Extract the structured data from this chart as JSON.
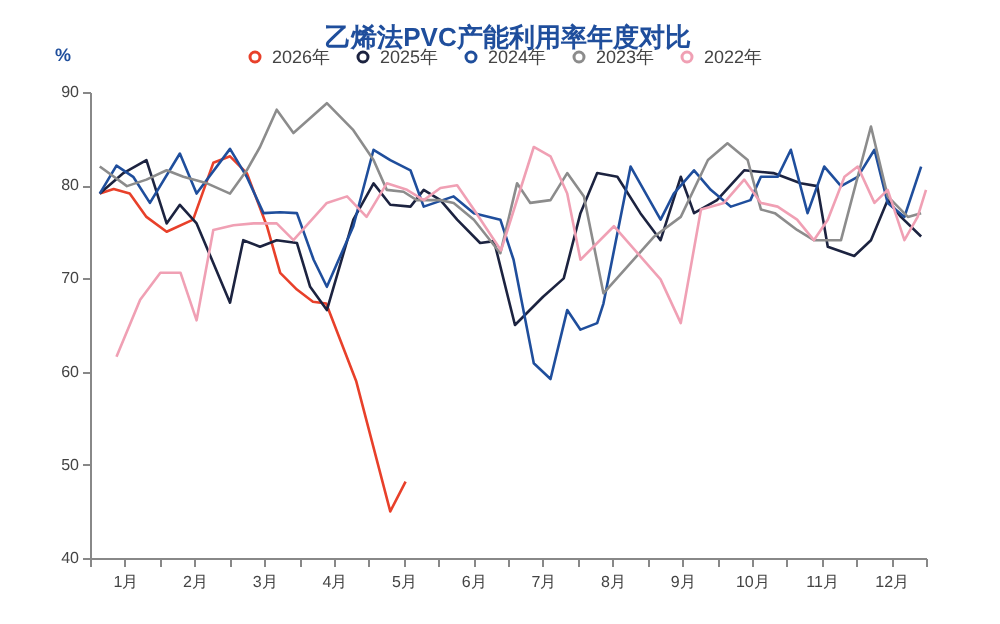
{
  "chart_data": {
    "type": "line",
    "title": "乙烯法PVC产能利用率年度对比",
    "ylabel": "%",
    "legend": "top",
    "grid": false,
    "xlim": [
      0,
      12
    ],
    "ylim": [
      40,
      90
    ],
    "yticks": [
      40,
      50,
      60,
      70,
      80,
      90
    ],
    "xticks": [
      {
        "value": 0,
        "label": null
      },
      {
        "value": 0.5,
        "label": "1月"
      },
      {
        "value": 1,
        "label": null
      },
      {
        "value": 1.5,
        "label": "2月"
      },
      {
        "value": 2,
        "label": null
      },
      {
        "value": 2.5,
        "label": "3月"
      },
      {
        "value": 3,
        "label": null
      },
      {
        "value": 3.5,
        "label": "4月"
      },
      {
        "value": 4,
        "label": null
      },
      {
        "value": 4.5,
        "label": "5月"
      },
      {
        "value": 5,
        "label": null
      },
      {
        "value": 5.5,
        "label": "6月"
      },
      {
        "value": 6,
        "label": null
      },
      {
        "value": 6.5,
        "label": "7月"
      },
      {
        "value": 7,
        "label": null
      },
      {
        "value": 7.5,
        "label": "8月"
      },
      {
        "value": 8,
        "label": null
      },
      {
        "value": 8.5,
        "label": "9月"
      },
      {
        "value": 9,
        "label": null
      },
      {
        "value": 9.5,
        "label": "10月"
      },
      {
        "value": 10,
        "label": null
      },
      {
        "value": 10.5,
        "label": "11月"
      },
      {
        "value": 11,
        "label": null
      },
      {
        "value": 11.5,
        "label": "12月"
      },
      {
        "value": 12,
        "label": null
      }
    ],
    "series": [
      {
        "name": "2026年",
        "color": "#e8402a",
        "x": [
          0.14,
          0.34,
          0.57,
          0.81,
          1.1,
          1.48,
          1.77,
          2.01,
          2.25,
          2.54,
          2.73,
          2.97,
          3.2,
          3.39,
          3.82,
          4.31,
          4.53
        ],
        "values": [
          79.1,
          79.6,
          79.1,
          76.6,
          75,
          76.3,
          82.4,
          83.1,
          81.3,
          75.6,
          70.6,
          68.8,
          67.5,
          67.3,
          59,
          45,
          48.2
        ]
      },
      {
        "name": "2025年",
        "color": "#1c2340",
        "x": [
          0.14,
          0.48,
          0.81,
          1.1,
          1.29,
          1.53,
          2.01,
          2.2,
          2.44,
          2.68,
          2.97,
          3.16,
          3.4,
          3.78,
          4.07,
          4.31,
          4.6,
          4.79,
          5.03,
          5.27,
          5.6,
          5.8,
          6.1,
          6.5,
          6.8,
          7.04,
          7.28,
          7.57,
          7.9,
          8.19,
          8.48,
          8.67,
          9.0,
          9.39,
          9.81,
          10.2,
          10.44,
          10.59,
          10.97,
          11.21,
          11.45,
          11.64,
          11.93
        ],
        "values": [
          79.1,
          81.3,
          82.7,
          75.9,
          77.9,
          75.9,
          67.4,
          74.1,
          73.4,
          74.1,
          73.8,
          69.1,
          66.6,
          76.3,
          80.2,
          77.9,
          77.7,
          79.5,
          78.4,
          76.3,
          73.8,
          74,
          65,
          68,
          70,
          77,
          81.3,
          80.9,
          77,
          74.1,
          80.9,
          77,
          78.4,
          81.6,
          81.3,
          80.2,
          79.9,
          73.4,
          72.4,
          74.1,
          78.4,
          76.6,
          74.5
        ]
      },
      {
        "name": "2024年",
        "color": "#1f4e9c",
        "x": [
          0.14,
          0.38,
          0.62,
          0.86,
          1.29,
          1.53,
          2.01,
          2.25,
          2.49,
          2.73,
          2.97,
          3.21,
          3.4,
          3.78,
          4.07,
          4.31,
          4.6,
          4.79,
          5.22,
          5.51,
          5.89,
          6.08,
          6.37,
          6.61,
          6.85,
          7.04,
          7.28,
          7.37,
          7.76,
          8.19,
          8.38,
          8.67,
          8.91,
          9.2,
          9.48,
          9.63,
          9.87,
          10.06,
          10.3,
          10.54,
          10.78,
          11.02,
          11.26,
          11.45,
          11.69,
          11.93
        ],
        "values": [
          79.1,
          82.1,
          80.9,
          78.1,
          83.4,
          79.1,
          83.9,
          80.9,
          77,
          77.1,
          77,
          72,
          69.1,
          75.6,
          83.8,
          82.7,
          81.6,
          77.7,
          78.8,
          77,
          76.3,
          72,
          60.9,
          59.2,
          66.6,
          64.5,
          65.2,
          67.3,
          82,
          76.3,
          79.1,
          81.6,
          79.5,
          77.7,
          78.4,
          80.9,
          80.9,
          83.8,
          77,
          82,
          79.9,
          80.9,
          83.8,
          78.1,
          76.6,
          82
        ]
      },
      {
        "name": "2023年",
        "color": "#8c8c8c",
        "x": [
          0.14,
          0.53,
          0.81,
          1.1,
          1.34,
          1.68,
          2.01,
          2.25,
          2.44,
          2.68,
          2.92,
          3.4,
          3.78,
          4.07,
          4.26,
          4.5,
          4.69,
          5.03,
          5.22,
          5.51,
          5.89,
          6.13,
          6.32,
          6.61,
          6.85,
          7.09,
          7.37,
          8.1,
          8.48,
          8.87,
          9.15,
          9.44,
          9.63,
          9.83,
          10.15,
          10.39,
          10.78,
          11.21,
          11.45,
          11.74,
          11.93
        ],
        "values": [
          82,
          79.9,
          80.6,
          81.6,
          80.9,
          80.2,
          79.1,
          81.6,
          84.1,
          88.1,
          85.6,
          88.8,
          85.9,
          82.7,
          79.5,
          79.3,
          78.4,
          78.4,
          78.1,
          76.3,
          72.7,
          80.2,
          78.1,
          78.4,
          81.3,
          78.8,
          68.4,
          74.5,
          76.6,
          82.7,
          84.5,
          82.7,
          77.4,
          77,
          75.2,
          74.1,
          74.1,
          86.3,
          78.8,
          76.6,
          77
        ]
      },
      {
        "name": "2022年",
        "color": "#f0a0b4",
        "x": [
          0.38,
          0.72,
          1.01,
          1.3,
          1.53,
          1.77,
          2.06,
          2.35,
          2.68,
          2.92,
          3.4,
          3.69,
          3.97,
          4.26,
          4.55,
          4.79,
          5.03,
          5.27,
          5.51,
          5.9,
          6.37,
          6.61,
          6.85,
          7.04,
          7.52,
          8.19,
          8.48,
          8.77,
          9.1,
          9.39,
          9.63,
          9.87,
          10.15,
          10.39,
          10.59,
          10.83,
          11.02,
          11.26,
          11.45,
          11.69,
          11.88,
          12.0
        ],
        "values": [
          61.6,
          67.7,
          70.6,
          70.6,
          65.5,
          75.2,
          75.7,
          75.9,
          75.9,
          74.1,
          78.1,
          78.8,
          76.6,
          80.2,
          79.5,
          78.4,
          79.7,
          80,
          77.4,
          73,
          84.1,
          83.1,
          79.1,
          72,
          75.6,
          69.9,
          65.2,
          77.4,
          78.1,
          80.6,
          78.1,
          77.7,
          76.3,
          74.1,
          76.3,
          80.9,
          82,
          78.1,
          79.5,
          74.1,
          76.6,
          79.5
        ]
      }
    ]
  }
}
